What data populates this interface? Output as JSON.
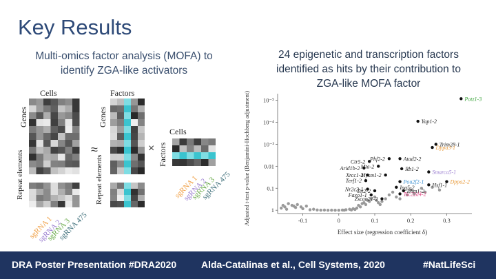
{
  "slide": {
    "title": "Key Results",
    "left_subtitle": "Multi-omics factor analysis (MOFA) to identify ZGA-like activators",
    "right_subtitle": "24 epigenetic and transcription factors identified as hits by their contribution to ZGA-like MOFA factor"
  },
  "mofa_diagram": {
    "cells_label": "Cells",
    "genes_label": "Genes",
    "factors_label": "Factors",
    "repeat_label": "Repeat elements",
    "approx_symbol": "≈",
    "times_symbol": "×",
    "sgrnas": [
      {
        "label": "sgRNA 1",
        "color": "#f0a046"
      },
      {
        "label": "sgRNA 2",
        "color": "#9b7fd0"
      },
      {
        "label": "sgRNA 3",
        "color": "#6aaa4a"
      },
      {
        "label": "sgRNA 475",
        "color": "#3e6f7a"
      }
    ]
  },
  "chart_data": {
    "type": "scatter",
    "xlabel": "Effect size (regression coefficient δ)",
    "ylabel": "Adjusted t-test p-value (Benjamini-Hochberg adjustment)",
    "x_ticks": [
      "-0.1",
      "0",
      "0.1",
      "0.2",
      "0.3"
    ],
    "y_ticks": [
      "1",
      "0.1",
      "0.01",
      "10⁻³",
      "10⁻⁴",
      "10⁻⁵"
    ],
    "xlim": [
      -0.17,
      0.37
    ],
    "ylim_log10_neg": [
      -0.15,
      5.3
    ],
    "labeled_points": [
      {
        "label": "Potz1-3",
        "x": 0.34,
        "p": 8.5e-06,
        "color": "#3aa33a"
      },
      {
        "label": "Yap1-2",
        "x": 0.22,
        "p": 9e-05,
        "color": "#1a1a1a"
      },
      {
        "label": "Trim28-1",
        "x": 0.27,
        "p": 0.001,
        "color": "#1a1a1a"
      },
      {
        "label": "Dppa3-1",
        "x": 0.26,
        "p": 0.0014,
        "color": "#e89a3a"
      },
      {
        "label": "Atad2-2",
        "x": 0.17,
        "p": 0.0045,
        "color": "#1a1a1a"
      },
      {
        "label": "Phf2-2",
        "x": 0.14,
        "p": 0.0045,
        "color": "#1a1a1a"
      },
      {
        "label": "Ctr5-2",
        "x": 0.085,
        "p": 0.006,
        "color": "#1a1a1a"
      },
      {
        "label": "Mta-2",
        "x": 0.11,
        "p": 0.01,
        "color": "#1a1a1a"
      },
      {
        "label": "Rb1-2",
        "x": 0.175,
        "p": 0.013,
        "color": "#1a1a1a"
      },
      {
        "label": "Arid1b-2",
        "x": 0.07,
        "p": 0.012,
        "color": "#1a1a1a"
      },
      {
        "label": "Mysm1-2",
        "x": 0.13,
        "p": 0.025,
        "color": "#1a1a1a"
      },
      {
        "label": "Smarca5-1",
        "x": 0.25,
        "p": 0.018,
        "color": "#9b7fd0"
      },
      {
        "label": "Xrcc1-2",
        "x": 0.08,
        "p": 0.025,
        "color": "#1a1a1a"
      },
      {
        "label": "Terf1-2",
        "x": 0.075,
        "p": 0.045,
        "color": "#1a1a1a"
      },
      {
        "label": "Pou2f2-1",
        "x": 0.17,
        "p": 0.05,
        "color": "#3a8fd0"
      },
      {
        "label": "Dppa2-2",
        "x": 0.3,
        "p": 0.05,
        "color": "#e89a3a"
      },
      {
        "label": "Hsf1-1",
        "x": 0.25,
        "p": 0.07,
        "color": "#1a1a1a"
      },
      {
        "label": "Ing5-2",
        "x": 0.16,
        "p": 0.09,
        "color": "#1a1a1a"
      },
      {
        "label": "Nr2c2-1",
        "x": 0.08,
        "p": 0.11,
        "color": "#1a1a1a"
      },
      {
        "label": "Tet2-2",
        "x": 0.1,
        "p": 0.13,
        "color": "#1a1a1a"
      },
      {
        "label": "Ehm1-2",
        "x": 0.18,
        "p": 0.13,
        "color": "#1a1a1a"
      },
      {
        "label": "Faxo1-1",
        "x": 0.09,
        "p": 0.2,
        "color": "#1a1a1a"
      },
      {
        "label": "Tsc22d4-2",
        "x": 0.17,
        "p": 0.18,
        "color": "#e04080"
      },
      {
        "label": "Zscan21-2",
        "x": 0.12,
        "p": 0.3,
        "color": "#1a1a1a"
      }
    ],
    "background_points": [
      {
        "x": -0.16,
        "p": 0.8
      },
      {
        "x": -0.15,
        "p": 0.7
      },
      {
        "x": -0.145,
        "p": 0.9
      },
      {
        "x": -0.14,
        "p": 0.5
      },
      {
        "x": -0.13,
        "p": 0.6
      },
      {
        "x": -0.12,
        "p": 0.75
      },
      {
        "x": -0.115,
        "p": 0.55
      },
      {
        "x": -0.1,
        "p": 0.85
      },
      {
        "x": -0.09,
        "p": 0.65
      },
      {
        "x": -0.08,
        "p": 0.95
      },
      {
        "x": -0.07,
        "p": 0.9
      },
      {
        "x": -0.06,
        "p": 0.97
      },
      {
        "x": -0.05,
        "p": 0.99
      },
      {
        "x": -0.04,
        "p": 0.98
      },
      {
        "x": -0.03,
        "p": 1.0
      },
      {
        "x": -0.02,
        "p": 0.99
      },
      {
        "x": -0.01,
        "p": 1.0
      },
      {
        "x": 0.0,
        "p": 1.0
      },
      {
        "x": 0.01,
        "p": 0.98
      },
      {
        "x": 0.02,
        "p": 0.95
      },
      {
        "x": 0.03,
        "p": 0.9
      },
      {
        "x": 0.04,
        "p": 0.85
      },
      {
        "x": 0.05,
        "p": 0.8
      },
      {
        "x": 0.055,
        "p": 0.6
      },
      {
        "x": 0.06,
        "p": 0.7
      },
      {
        "x": 0.065,
        "p": 0.5
      },
      {
        "x": 0.07,
        "p": 0.45
      },
      {
        "x": 0.075,
        "p": 0.55
      },
      {
        "x": 0.08,
        "p": 0.35
      },
      {
        "x": 0.085,
        "p": 0.4
      },
      {
        "x": 0.09,
        "p": 0.3
      },
      {
        "x": 0.1,
        "p": 0.25
      },
      {
        "x": 0.105,
        "p": 0.35
      },
      {
        "x": 0.11,
        "p": 0.45
      },
      {
        "x": 0.115,
        "p": 0.55
      },
      {
        "x": 0.12,
        "p": 0.4
      },
      {
        "x": 0.13,
        "p": 0.3
      },
      {
        "x": 0.14,
        "p": 0.2
      },
      {
        "x": 0.15,
        "p": 0.15
      },
      {
        "x": 0.16,
        "p": 0.25
      },
      {
        "x": 0.17,
        "p": 0.3
      },
      {
        "x": 0.19,
        "p": 0.2
      },
      {
        "x": 0.2,
        "p": 0.12
      },
      {
        "x": 0.21,
        "p": 0.18
      },
      {
        "x": 0.23,
        "p": 0.1
      },
      {
        "x": 0.24,
        "p": 0.15
      },
      {
        "x": 0.26,
        "p": 0.09
      },
      {
        "x": 0.28,
        "p": 0.12
      },
      {
        "x": -0.125,
        "p": 0.65
      },
      {
        "x": -0.105,
        "p": 0.7
      },
      {
        "x": -0.155,
        "p": 0.6
      },
      {
        "x": 0.045,
        "p": 0.92
      },
      {
        "x": 0.035,
        "p": 0.97
      },
      {
        "x": 0.015,
        "p": 0.99
      }
    ]
  },
  "footer": {
    "left": "DRA Poster Presentation #DRA2020",
    "center": "Alda-Catalinas et al., Cell Systems, 2020",
    "right": "#NatLifeSci"
  },
  "colors": {
    "title": "#2e4a78",
    "footer_bg": "#1f3460",
    "teal": "#3bc4cf"
  }
}
